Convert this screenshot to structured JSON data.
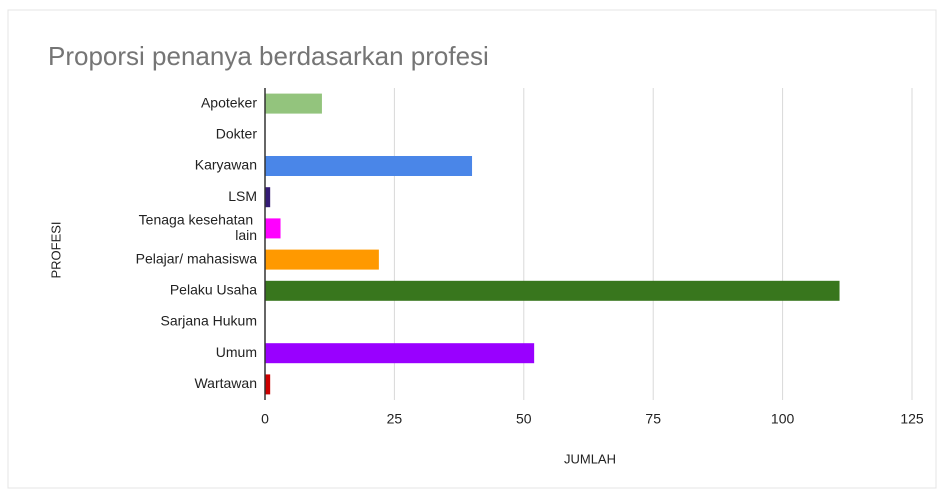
{
  "chart_data": {
    "type": "bar",
    "orientation": "horizontal",
    "title": "Proporsi penanya berdasarkan profesi",
    "x_label": "JUMLAH",
    "y_label": "PROFESI",
    "categories": [
      "Apoteker",
      "Dokter",
      "Karyawan",
      "LSM",
      "Tenaga kesehatan lain",
      "Pelajar/ mahasiswa",
      "Pelaku Usaha",
      "Sarjana Hukum",
      "Umum",
      "Wartawan"
    ],
    "values": [
      11,
      0,
      40,
      1,
      3,
      22,
      111,
      0,
      52,
      1
    ],
    "colors": [
      "#93c47d",
      "#999999",
      "#4a86e8",
      "#351c75",
      "#ff00ff",
      "#ff9900",
      "#38761d",
      "#999999",
      "#9900ff",
      "#cc0000"
    ],
    "xlim": [
      0,
      125
    ],
    "xticks": [
      0,
      25,
      50,
      75,
      100,
      125
    ],
    "grid": true
  }
}
